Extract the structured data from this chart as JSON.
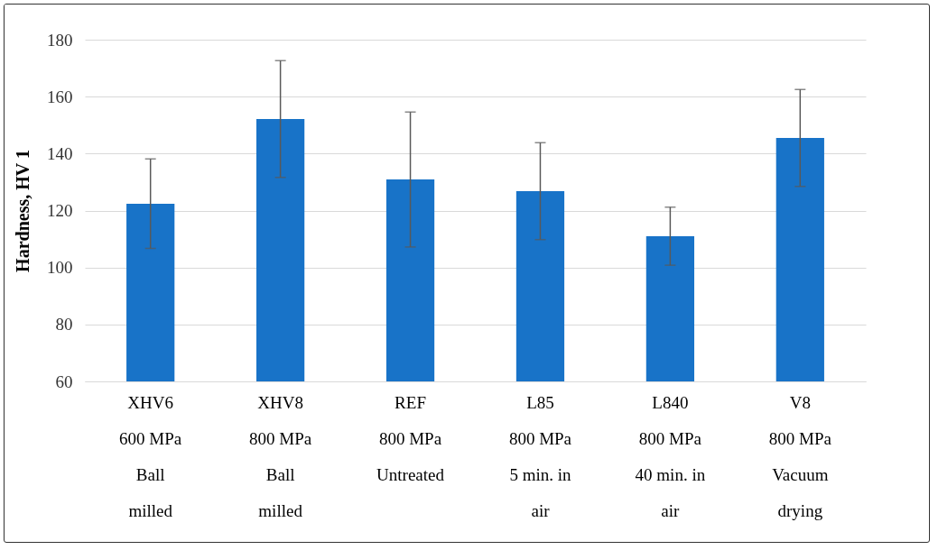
{
  "chart_data": {
    "type": "bar",
    "ylabel": "Hardness, HV 1",
    "categories": [
      "XHV6\n600 MPa\nBall\nmilled",
      "XHV8\n800 MPa\nBall\nmilled",
      "REF\n800 MPa\nUntreated",
      "L85\n800 MPa\n5 min. in\nair",
      "L840\n800 MPa\n40 min. in\nair",
      "V8\n800 MPa\nVacuum\ndrying"
    ],
    "values": [
      122.4,
      152.1,
      130.9,
      126.8,
      111.0,
      145.5
    ],
    "errors": [
      15.7,
      20.5,
      23.7,
      17.0,
      10.2,
      17.0
    ],
    "color": "#1873c8",
    "ylim": [
      60,
      180
    ],
    "yticks": [
      60,
      80,
      100,
      120,
      140,
      160,
      180
    ],
    "grid": "y"
  }
}
